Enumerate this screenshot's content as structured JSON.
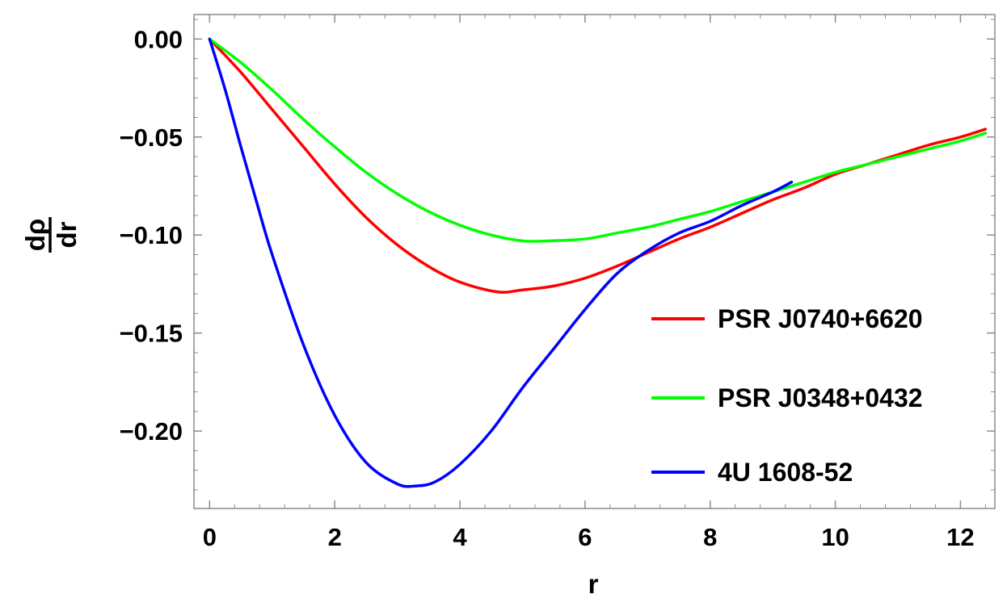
{
  "chart_data": {
    "type": "line",
    "xlabel": "r",
    "ylabel": {
      "numerator": "dρ",
      "denominator": "dr"
    },
    "xlim": [
      -0.25,
      12.55
    ],
    "ylim": [
      -0.2395,
      0.0125
    ],
    "x_ticks": [
      0,
      2,
      4,
      6,
      8,
      10,
      12
    ],
    "x_tick_labels": [
      "0",
      "2",
      "4",
      "6",
      "8",
      "10",
      "12"
    ],
    "y_ticks": [
      0,
      -0.05,
      -0.1,
      -0.15,
      -0.2
    ],
    "y_tick_labels": [
      "0.00",
      "−0.05",
      "−0.10",
      "−0.15",
      "−0.20"
    ],
    "grid": false,
    "frame": true,
    "legend_position": "right",
    "series": [
      {
        "name": "PSR J0740+6620",
        "color": "#ff0000",
        "x": [
          0,
          0.5,
          1,
          1.5,
          2,
          2.5,
          3,
          3.5,
          4,
          4.6,
          5,
          5.5,
          6,
          6.5,
          7,
          7.5,
          8,
          8.5,
          9,
          9.5,
          10,
          10.5,
          11,
          11.5,
          12,
          12.4
        ],
        "y": [
          0,
          -0.017,
          -0.036,
          -0.055,
          -0.074,
          -0.091,
          -0.105,
          -0.116,
          -0.124,
          -0.129,
          -0.128,
          -0.126,
          -0.122,
          -0.116,
          -0.109,
          -0.102,
          -0.096,
          -0.089,
          -0.082,
          -0.076,
          -0.069,
          -0.064,
          -0.059,
          -0.054,
          -0.05,
          -0.046
        ]
      },
      {
        "name": "PSR J0348+0432",
        "color": "#00ff00",
        "x": [
          0,
          0.5,
          1,
          1.5,
          2,
          2.5,
          3,
          3.5,
          4,
          4.5,
          5,
          5.4,
          6,
          6.5,
          7,
          7.5,
          8,
          8.5,
          9,
          9.5,
          10,
          10.5,
          11,
          11.5,
          12,
          12.4
        ],
        "y": [
          0,
          -0.012,
          -0.026,
          -0.041,
          -0.055,
          -0.068,
          -0.079,
          -0.088,
          -0.095,
          -0.1,
          -0.103,
          -0.103,
          -0.102,
          -0.099,
          -0.096,
          -0.092,
          -0.088,
          -0.083,
          -0.078,
          -0.073,
          -0.068,
          -0.064,
          -0.06,
          -0.056,
          -0.052,
          -0.048
        ]
      },
      {
        "name": "4U 1608-52",
        "color": "#0000ff",
        "x": [
          0,
          0.25,
          0.5,
          0.75,
          1,
          1.5,
          2,
          2.5,
          3,
          3.3,
          3.6,
          4,
          4.5,
          5,
          5.5,
          6,
          6.5,
          7,
          7.5,
          8,
          8.5,
          9,
          9.3
        ],
        "y": [
          0,
          -0.026,
          -0.055,
          -0.083,
          -0.11,
          -0.156,
          -0.192,
          -0.216,
          -0.227,
          -0.228,
          -0.226,
          -0.217,
          -0.2,
          -0.178,
          -0.158,
          -0.138,
          -0.12,
          -0.108,
          -0.099,
          -0.093,
          -0.085,
          -0.078,
          -0.073
        ]
      }
    ]
  }
}
